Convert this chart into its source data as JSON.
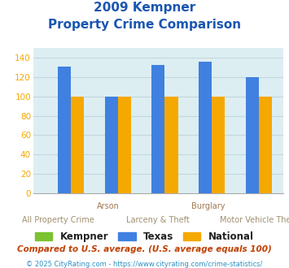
{
  "title_line1": "2009 Kempner",
  "title_line2": "Property Crime Comparison",
  "groups": [
    "All Property Crime",
    "Arson",
    "Larceny & Theft",
    "Burglary",
    "Motor Vehicle Theft"
  ],
  "kempner": [
    0,
    0,
    0,
    0,
    0
  ],
  "texas": [
    131,
    100,
    133,
    136,
    120
  ],
  "national": [
    100,
    100,
    100,
    100,
    100
  ],
  "kempner_color": "#7bc230",
  "texas_color": "#4080e0",
  "national_color": "#f5a800",
  "bg_color": "#ddeef2",
  "ylim": [
    0,
    150
  ],
  "yticks": [
    0,
    20,
    40,
    60,
    80,
    100,
    120,
    140
  ],
  "title_color": "#1a56b0",
  "xlabel_color_top": "#a07850",
  "xlabel_color_bot": "#a09070",
  "legend_fontsize": 8.5,
  "footnote1": "Compared to U.S. average. (U.S. average equals 100)",
  "footnote2": "© 2025 CityRating.com - https://www.cityrating.com/crime-statistics/",
  "footnote1_color": "#c04000",
  "footnote2_color": "#3090c0",
  "bar_width": 0.28,
  "grid_color": "#c0d8dc",
  "ytick_color": "#f5a800"
}
